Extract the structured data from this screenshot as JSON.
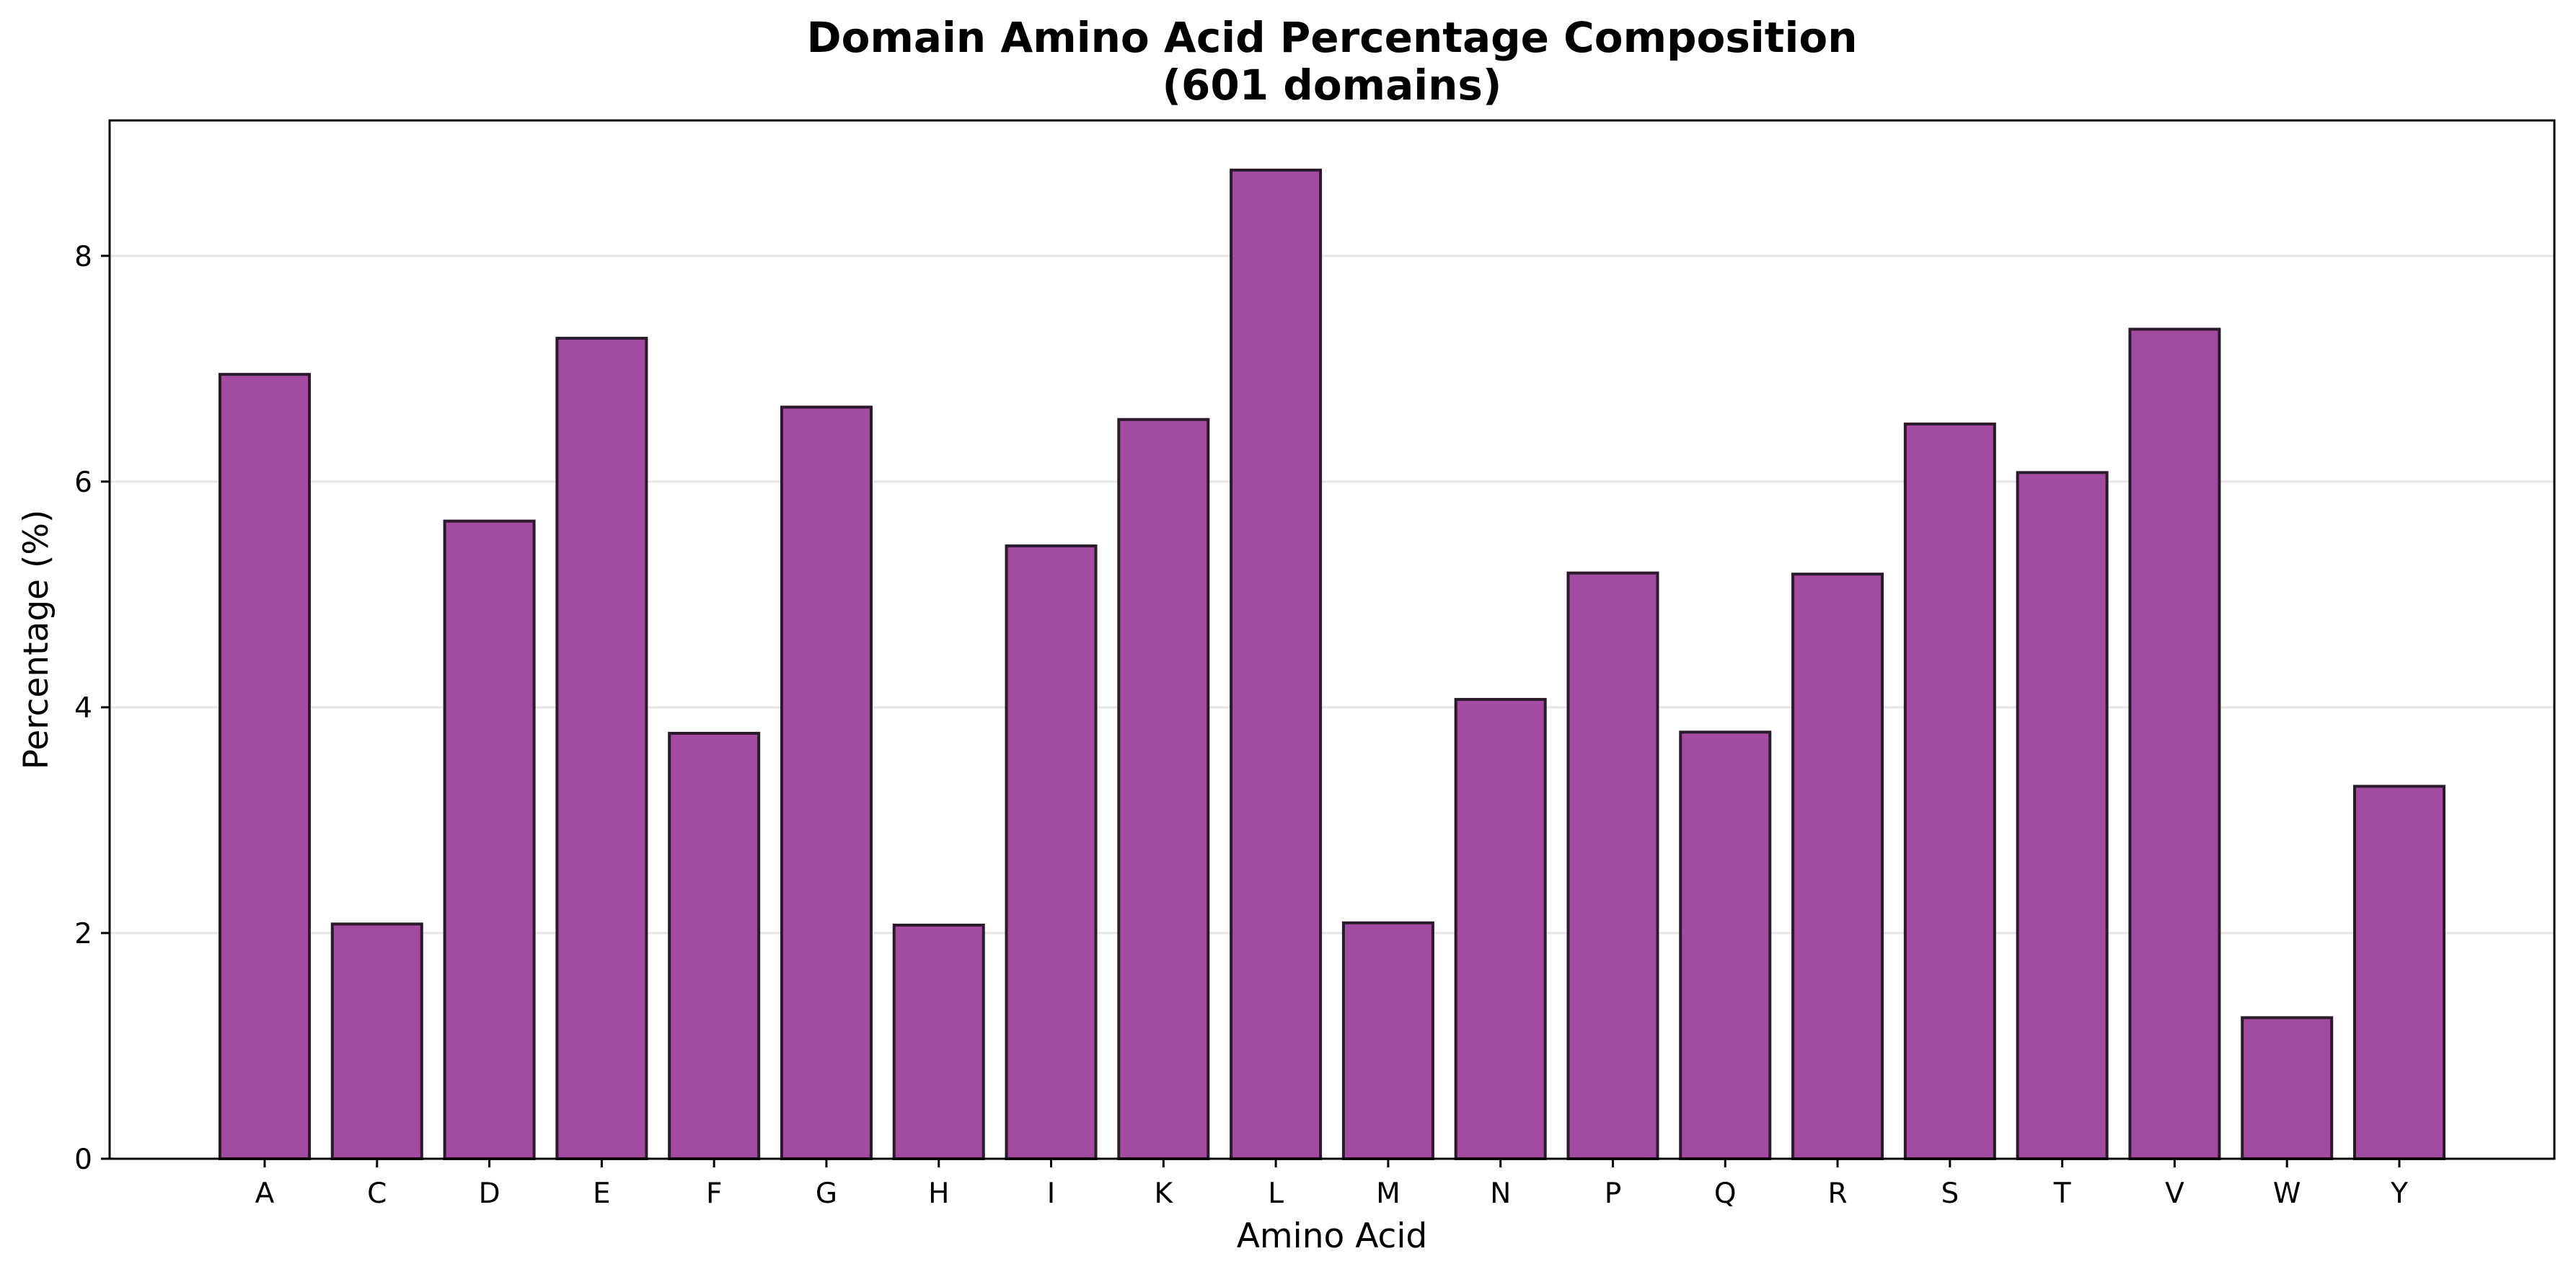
{
  "chart_data": {
    "type": "bar",
    "title": "Domain Amino Acid Percentage Composition",
    "subtitle": "(601 domains)",
    "xlabel": "Amino Acid",
    "ylabel": "Percentage (%)",
    "categories": [
      "A",
      "C",
      "D",
      "E",
      "F",
      "G",
      "H",
      "I",
      "K",
      "L",
      "M",
      "N",
      "P",
      "Q",
      "R",
      "S",
      "T",
      "V",
      "W",
      "Y"
    ],
    "values": [
      6.95,
      2.08,
      5.65,
      7.27,
      3.77,
      6.66,
      2.07,
      5.43,
      6.55,
      8.76,
      2.09,
      4.07,
      5.19,
      3.78,
      5.18,
      6.51,
      6.08,
      7.35,
      1.25,
      3.3
    ],
    "ylim": [
      0,
      9.2
    ],
    "yticks": [
      0,
      2,
      4,
      6,
      8
    ],
    "grid": "y",
    "legend": "none",
    "bar_color": "#a24ba0",
    "edge_color": "#2b1a2b"
  }
}
